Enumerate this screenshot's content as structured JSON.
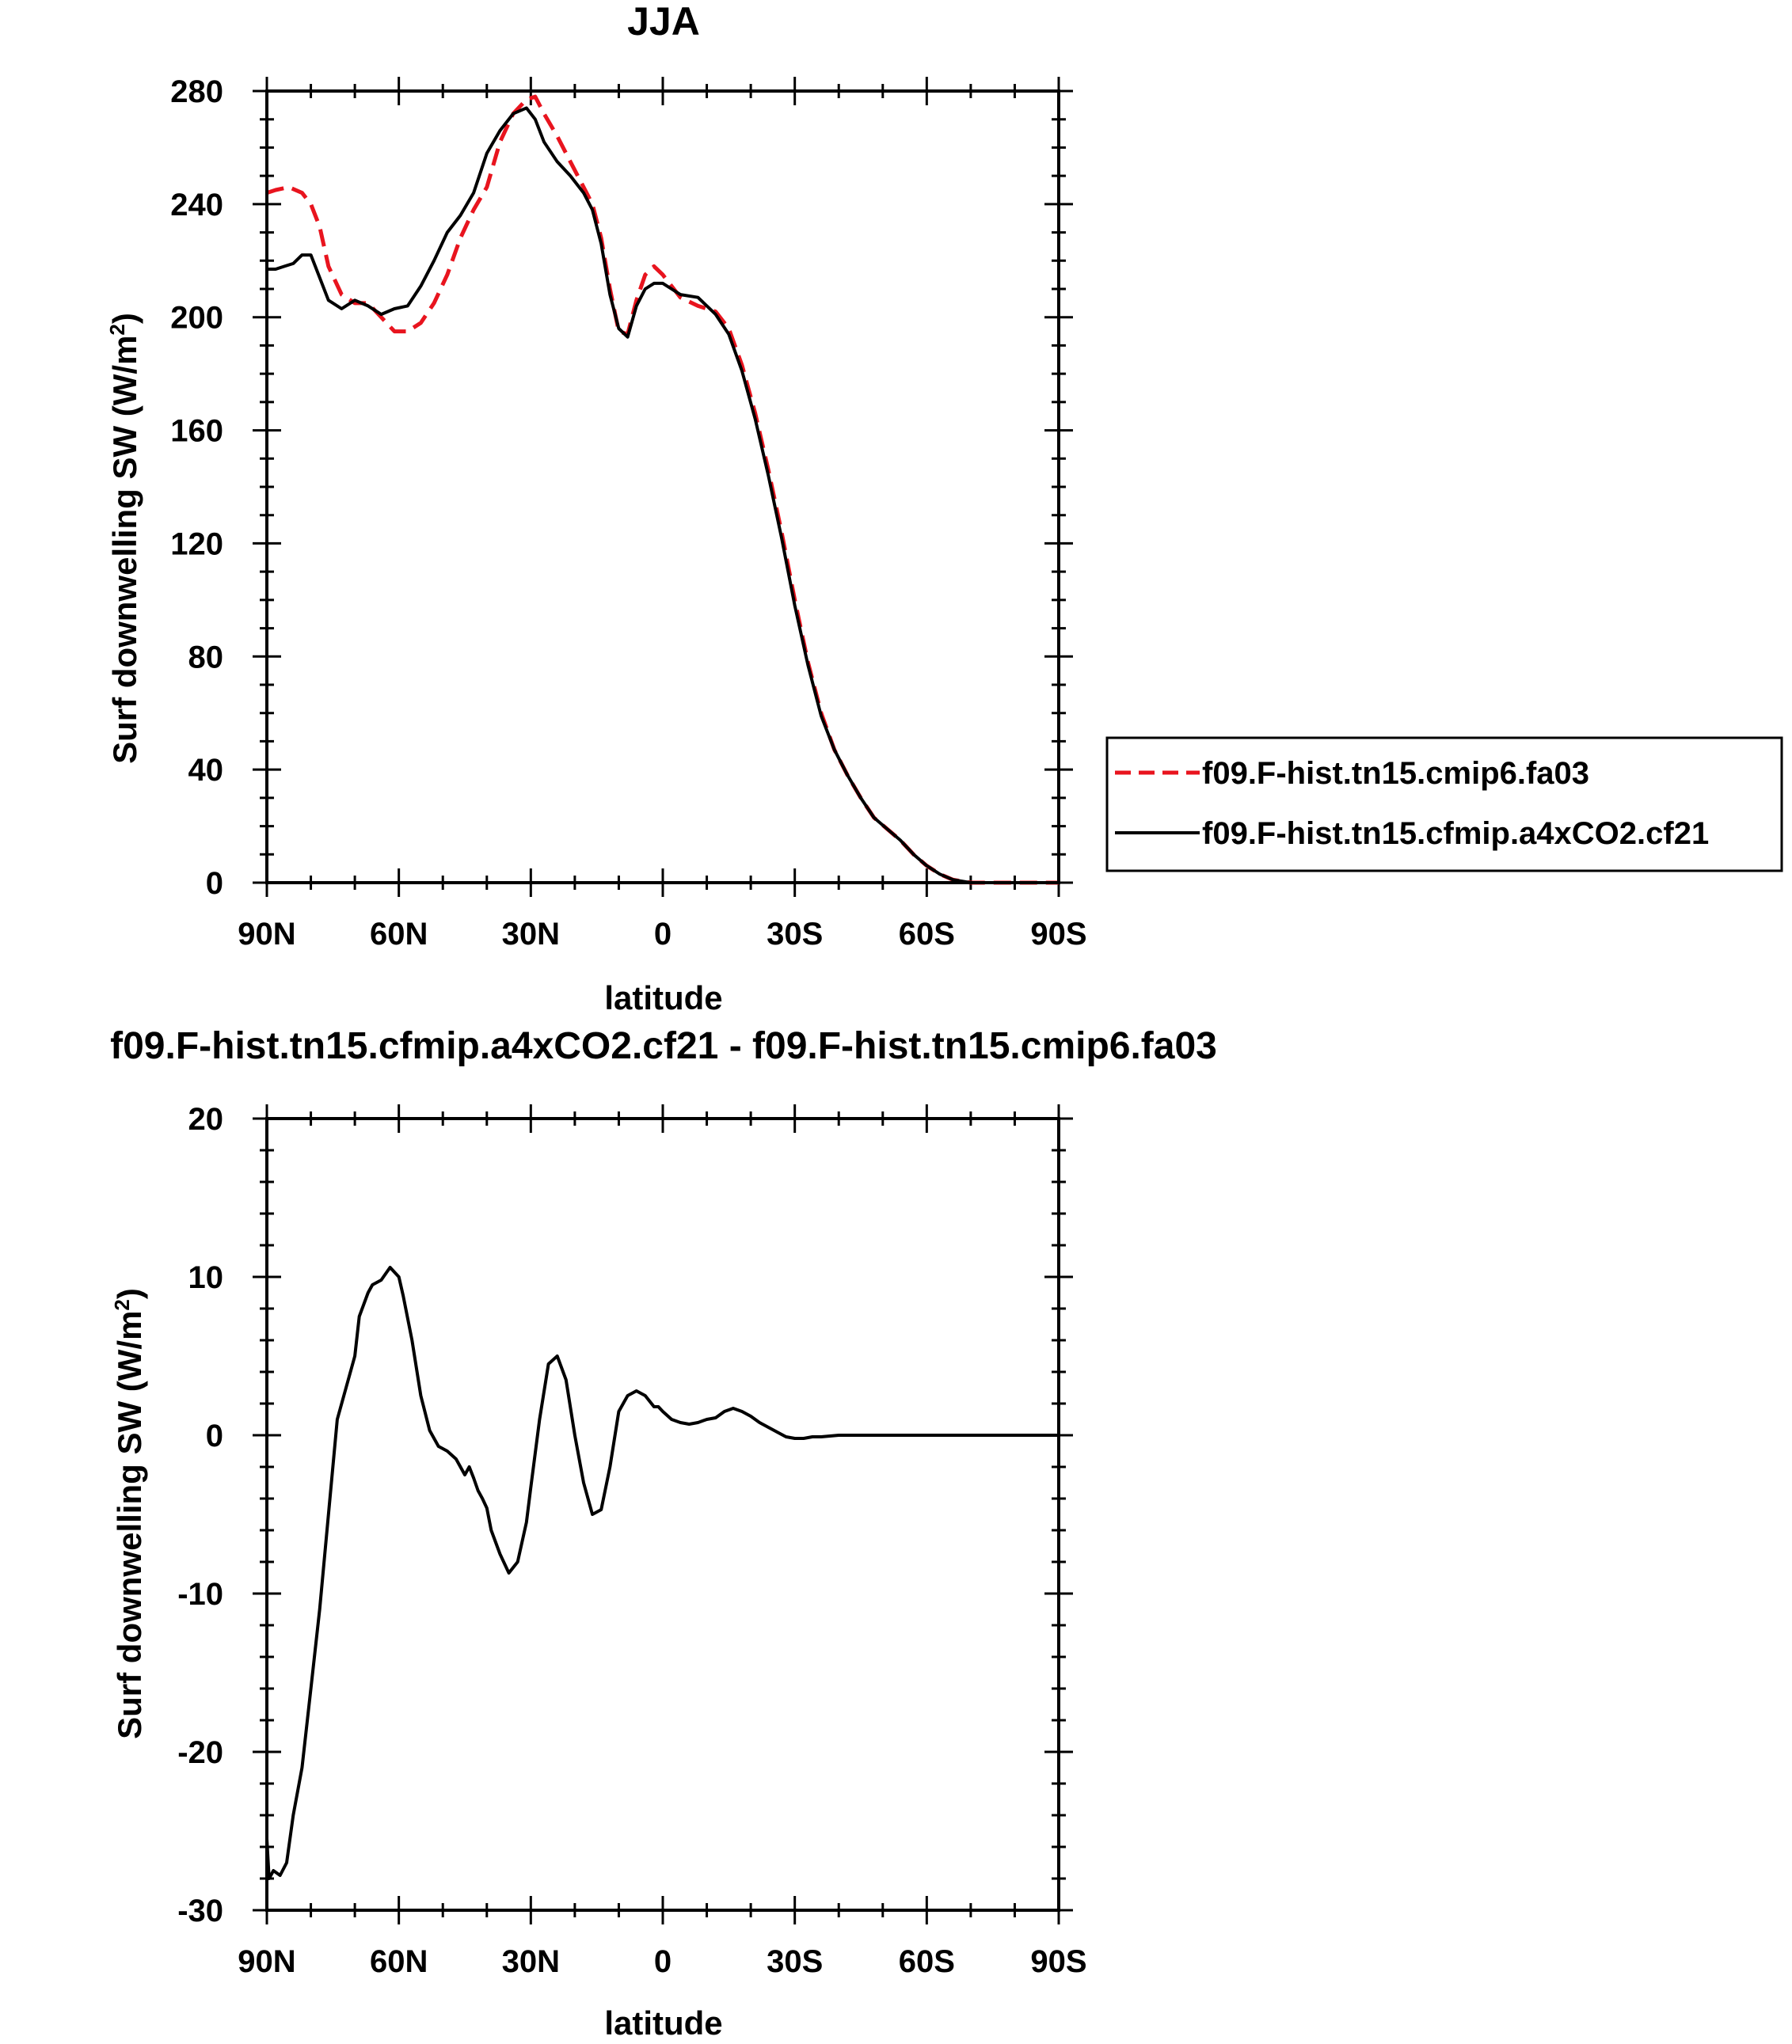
{
  "chart_data": [
    {
      "type": "line",
      "title": "JJA",
      "xlabel": "latitude",
      "ylabel_prefix": "Surf downwelling SW (W/m",
      "ylabel_sup": "2",
      "ylabel_suffix": ")",
      "xlim": [
        90,
        -90
      ],
      "ylim": [
        0,
        280
      ],
      "x_ticks": [
        {
          "value": 90,
          "label": "90N"
        },
        {
          "value": 60,
          "label": "60N"
        },
        {
          "value": 30,
          "label": "30N"
        },
        {
          "value": 0,
          "label": "0"
        },
        {
          "value": -30,
          "label": "30S"
        },
        {
          "value": -60,
          "label": "60S"
        },
        {
          "value": -90,
          "label": "90S"
        }
      ],
      "y_ticks": [
        0,
        40,
        80,
        120,
        160,
        200,
        240,
        280
      ],
      "legend_position": "right",
      "series": [
        {
          "name": "f09.F-hist.tn15.cmip6.fa03",
          "color": "#e8141e",
          "style": "dashed",
          "x": [
            90,
            88,
            85,
            82,
            80,
            78,
            76,
            73,
            70,
            67,
            64,
            61,
            58,
            55,
            52,
            49,
            46,
            43,
            40,
            37,
            34,
            31,
            29,
            27,
            24,
            21,
            18,
            16,
            14,
            12,
            10,
            8,
            6,
            4,
            2,
            0,
            -2,
            -4,
            -8,
            -12,
            -15,
            -18,
            -21,
            -24,
            -27,
            -30,
            -33,
            -36,
            -39,
            -42,
            -45,
            -48,
            -51,
            -54,
            -57,
            -60,
            -63,
            -66,
            -70,
            -73,
            -76,
            -79,
            -82,
            -85,
            -90
          ],
          "y": [
            244,
            245,
            246,
            244,
            240,
            232,
            218,
            208,
            205,
            205,
            200,
            195,
            195,
            198,
            205,
            215,
            228,
            238,
            246,
            262,
            272,
            277,
            278,
            272,
            264,
            255,
            246,
            240,
            228,
            210,
            195,
            194,
            206,
            215,
            218,
            215,
            211,
            207,
            204,
            202,
            196,
            183,
            166,
            146,
            124,
            100,
            78,
            60,
            47,
            38,
            30,
            23,
            19,
            15,
            10,
            6,
            3,
            1,
            0,
            0,
            0,
            0,
            0,
            0,
            0
          ]
        },
        {
          "name": "f09.F-hist.tn15.cfmip.a4xCO2.cf21",
          "color": "#000000",
          "style": "solid",
          "x": [
            90,
            88,
            86,
            84,
            82,
            80,
            78,
            76,
            73,
            70,
            67,
            64,
            61,
            58,
            55,
            52,
            49,
            46,
            43,
            40,
            37,
            34,
            31,
            29,
            27,
            24,
            21,
            18,
            16,
            14,
            12,
            10,
            8,
            6,
            4,
            2,
            0,
            -2,
            -4,
            -8,
            -12,
            -15,
            -18,
            -21,
            -24,
            -27,
            -30,
            -33,
            -36,
            -39,
            -42,
            -45,
            -48,
            -51,
            -54,
            -57,
            -60,
            -63,
            -66,
            -70,
            -73,
            -76,
            -79,
            -82,
            -85,
            -90
          ],
          "y": [
            217,
            217,
            218,
            219,
            222,
            222,
            214,
            206,
            203,
            206,
            204,
            201,
            203,
            204,
            211,
            220,
            230,
            236,
            244,
            258,
            266,
            272,
            274,
            270,
            262,
            255,
            250,
            244,
            238,
            226,
            208,
            196,
            193,
            204,
            210,
            212,
            212,
            210,
            208,
            207,
            201,
            194,
            181,
            164,
            144,
            122,
            98,
            77,
            59,
            47,
            38,
            30,
            23,
            19,
            15,
            10,
            6,
            3,
            1,
            0,
            0,
            0,
            0,
            0,
            0,
            0
          ]
        }
      ]
    },
    {
      "type": "line",
      "title": "f09.F-hist.tn15.cfmip.a4xCO2.cf21 - f09.F-hist.tn15.cmip6.fa03",
      "xlabel": "latitude",
      "ylabel_prefix": "Surf downwelling SW (W/m",
      "ylabel_sup": "2",
      "ylabel_suffix": ")",
      "xlim": [
        90,
        -90
      ],
      "ylim": [
        -30,
        20
      ],
      "x_ticks": [
        {
          "value": 90,
          "label": "90N"
        },
        {
          "value": 60,
          "label": "60N"
        },
        {
          "value": 30,
          "label": "30N"
        },
        {
          "value": 0,
          "label": "0"
        },
        {
          "value": -30,
          "label": "30S"
        },
        {
          "value": -60,
          "label": "60S"
        },
        {
          "value": -90,
          "label": "90S"
        }
      ],
      "y_ticks": [
        -30,
        -20,
        -10,
        0,
        10,
        20
      ],
      "series": [
        {
          "name": "",
          "color": "#000000",
          "style": "solid",
          "x": [
            90,
            89.5,
            88.5,
            87,
            85.5,
            84,
            82,
            80,
            78,
            76,
            74,
            72,
            70,
            69,
            67,
            66,
            64,
            62,
            60,
            59,
            57,
            55,
            53,
            51,
            49,
            47,
            45,
            44,
            43,
            42,
            41,
            40,
            39,
            37,
            35,
            33,
            31,
            30,
            28,
            26,
            24,
            22,
            20,
            18,
            16,
            14,
            12,
            10,
            8,
            6,
            4,
            2,
            1,
            0,
            -2,
            -4,
            -6,
            -8,
            -10,
            -12,
            -14,
            -16,
            -18,
            -20,
            -22,
            -24,
            -26,
            -28,
            -30,
            -32,
            -34,
            -36,
            -38,
            -40,
            -42,
            -44,
            -46,
            -48,
            -50,
            -52,
            -54,
            -56,
            -58,
            -60,
            -65,
            -70,
            -75,
            -80,
            -85,
            -90
          ],
          "y": [
            -25.5,
            -28,
            -27.5,
            -27.8,
            -27,
            -24,
            -21,
            -16,
            -11,
            -5,
            1,
            3,
            5,
            7.5,
            9,
            9.5,
            9.8,
            10.6,
            10,
            8.8,
            6,
            2.5,
            0.3,
            -0.7,
            -1,
            -1.5,
            -2.5,
            -2,
            -2.7,
            -3.5,
            -4,
            -4.6,
            -6,
            -7.5,
            -8.7,
            -8,
            -5.5,
            -3.3,
            1,
            4.5,
            5,
            3.5,
            0,
            -3,
            -5,
            -4.7,
            -2,
            1.5,
            2.5,
            2.8,
            2.5,
            1.8,
            1.8,
            1.5,
            1,
            0.8,
            0.7,
            0.8,
            1,
            1.1,
            1.5,
            1.7,
            1.5,
            1.2,
            0.8,
            0.5,
            0.2,
            -0.1,
            -0.2,
            -0.2,
            -0.1,
            -0.1,
            -0.05,
            0,
            0,
            0,
            0,
            0,
            0,
            0,
            0,
            0,
            0,
            0,
            0,
            0,
            0,
            0,
            0,
            0
          ]
        }
      ]
    }
  ]
}
